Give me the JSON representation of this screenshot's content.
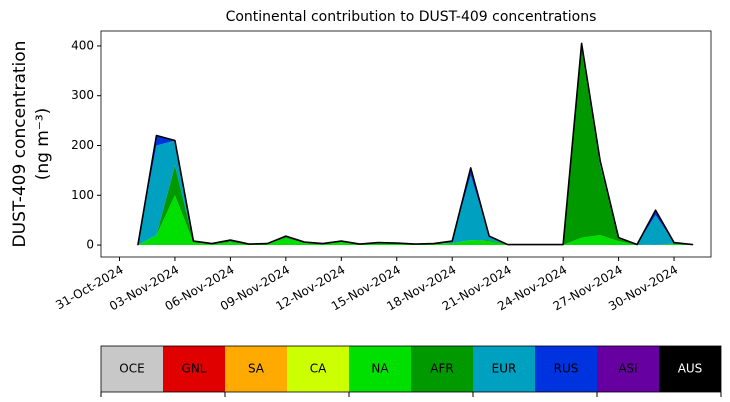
{
  "chart_data": {
    "type": "stacked_area",
    "title": "Continental contribution to DUST-409 concentrations",
    "ylabel": [
      "DUST-409 concentration",
      "(ng m⁻³)"
    ],
    "x": [
      "2024-11-01",
      "2024-11-02",
      "2024-11-03",
      "2024-11-04",
      "2024-11-05",
      "2024-11-06",
      "2024-11-07",
      "2024-11-08",
      "2024-11-09",
      "2024-11-10",
      "2024-11-11",
      "2024-11-12",
      "2024-11-13",
      "2024-11-14",
      "2024-11-15",
      "2024-11-16",
      "2024-11-17",
      "2024-11-18",
      "2024-11-19",
      "2024-11-20",
      "2024-11-21",
      "2024-11-22",
      "2024-11-23",
      "2024-11-24",
      "2024-11-25",
      "2024-11-26",
      "2024-11-27",
      "2024-11-28",
      "2024-11-29",
      "2024-11-30",
      "2024-12-01"
    ],
    "series": [
      {
        "name": "OCE",
        "color": "#c8c8c8",
        "values": [
          0,
          0,
          0,
          0,
          0,
          0,
          0,
          0,
          0,
          0,
          0,
          0,
          0,
          0,
          0,
          0,
          0,
          0,
          0,
          0,
          0,
          0,
          0,
          0,
          0,
          0,
          0,
          0,
          0,
          0,
          0
        ]
      },
      {
        "name": "GNL",
        "color": "#e00000",
        "values": [
          0,
          0,
          0,
          0,
          0,
          0,
          0,
          0,
          0,
          0,
          0,
          0,
          0,
          0,
          0,
          0,
          0,
          0,
          0,
          0,
          0,
          0,
          0,
          0,
          0,
          0,
          0,
          0,
          0,
          0,
          0
        ]
      },
      {
        "name": "SA",
        "color": "#ffaa00",
        "values": [
          0,
          0,
          0,
          0,
          0,
          0,
          0,
          0,
          0,
          0,
          0,
          0,
          0,
          0,
          0,
          0,
          0,
          0,
          0,
          0,
          0,
          0,
          0,
          0,
          0,
          0,
          0,
          0,
          0,
          0,
          0
        ]
      },
      {
        "name": "CA",
        "color": "#ccff00",
        "values": [
          0,
          0,
          0,
          0,
          0,
          0,
          0,
          0,
          0,
          0,
          0,
          0,
          0,
          0,
          0,
          0,
          0,
          0,
          0,
          0,
          0,
          0,
          0,
          0,
          0,
          0,
          0,
          0,
          0,
          0,
          0
        ]
      },
      {
        "name": "NA",
        "color": "#00e000",
        "values": [
          0,
          20,
          100,
          5,
          2,
          6,
          1,
          2,
          14,
          4,
          2,
          6,
          1,
          3,
          3,
          1,
          2,
          3,
          10,
          8,
          0,
          0,
          0,
          0,
          15,
          20,
          8,
          0,
          0,
          2,
          0
        ]
      },
      {
        "name": "AFR",
        "color": "#009900",
        "values": [
          0,
          0,
          60,
          2,
          1,
          2,
          1,
          1,
          2,
          1,
          1,
          1,
          1,
          1,
          1,
          1,
          1,
          1,
          0,
          2,
          1,
          1,
          1,
          1,
          380,
          140,
          5,
          1,
          0,
          1,
          1
        ]
      },
      {
        "name": "EUR",
        "color": "#00a0c0",
        "values": [
          1,
          180,
          50,
          1,
          0,
          2,
          0,
          0,
          2,
          1,
          0,
          1,
          0,
          1,
          0,
          0,
          0,
          4,
          130,
          8,
          0,
          0,
          0,
          0,
          10,
          10,
          2,
          0,
          60,
          2,
          0
        ]
      },
      {
        "name": "RUS",
        "color": "#0033e0",
        "values": [
          0,
          20,
          0,
          0,
          0,
          0,
          0,
          0,
          0,
          0,
          0,
          0,
          0,
          0,
          0,
          0,
          0,
          0,
          15,
          0,
          0,
          0,
          0,
          0,
          0,
          0,
          0,
          0,
          10,
          0,
          0
        ]
      },
      {
        "name": "ASI",
        "color": "#6600a0",
        "values": [
          0,
          0,
          0,
          0,
          0,
          0,
          0,
          0,
          0,
          0,
          0,
          0,
          0,
          0,
          0,
          0,
          0,
          0,
          0,
          0,
          0,
          0,
          0,
          0,
          0,
          0,
          0,
          0,
          0,
          0,
          0
        ]
      },
      {
        "name": "AUS",
        "color": "#000000",
        "values": [
          0,
          0,
          0,
          0,
          0,
          0,
          0,
          0,
          0,
          0,
          0,
          0,
          0,
          0,
          0,
          0,
          0,
          0,
          0,
          0,
          0,
          0,
          0,
          0,
          0,
          0,
          0,
          0,
          0,
          0,
          0
        ]
      }
    ],
    "xlim": [
      "2024-10-30",
      "2024-12-02"
    ],
    "xticks": [
      {
        "value": "2024-10-31",
        "label": "31-Oct-2024"
      },
      {
        "value": "2024-11-03",
        "label": "03-Nov-2024"
      },
      {
        "value": "2024-11-06",
        "label": "06-Nov-2024"
      },
      {
        "value": "2024-11-09",
        "label": "09-Nov-2024"
      },
      {
        "value": "2024-11-12",
        "label": "12-Nov-2024"
      },
      {
        "value": "2024-11-15",
        "label": "15-Nov-2024"
      },
      {
        "value": "2024-11-18",
        "label": "18-Nov-2024"
      },
      {
        "value": "2024-11-21",
        "label": "21-Nov-2024"
      },
      {
        "value": "2024-11-24",
        "label": "24-Nov-2024"
      },
      {
        "value": "2024-11-27",
        "label": "27-Nov-2024"
      },
      {
        "value": "2024-11-30",
        "label": "30-Nov-2024"
      }
    ],
    "ylim": [
      -24,
      430
    ],
    "yticks": [
      0,
      100,
      200,
      300,
      400
    ],
    "grid": false,
    "legend": "colorbar-bottom"
  }
}
